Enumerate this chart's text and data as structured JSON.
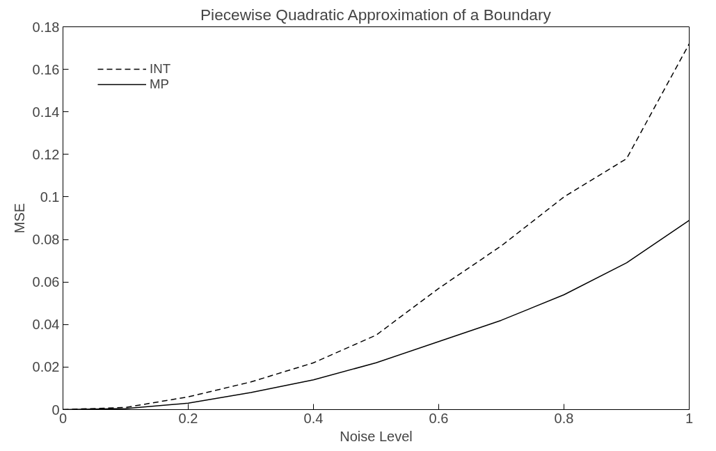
{
  "chart_data": {
    "type": "line",
    "title": "Piecewise Quadratic Approximation of a Boundary",
    "xlabel": "Noise Level",
    "ylabel": "MSE",
    "x": [
      0,
      0.1,
      0.2,
      0.3,
      0.4,
      0.5,
      0.6,
      0.7,
      0.8,
      0.9,
      1.0
    ],
    "series": [
      {
        "name": "INT",
        "color": "#000000",
        "line_style": "dashed",
        "values": [
          0,
          0.001,
          0.006,
          0.013,
          0.022,
          0.035,
          0.057,
          0.077,
          0.1,
          0.118,
          0.172
        ]
      },
      {
        "name": "MP",
        "color": "#000000",
        "line_style": "solid",
        "values": [
          0,
          0.0005,
          0.003,
          0.008,
          0.014,
          0.022,
          0.032,
          0.042,
          0.054,
          0.069,
          0.089
        ]
      }
    ],
    "xlim": [
      0,
      1
    ],
    "ylim": [
      0,
      0.18
    ],
    "xticks": [
      0,
      0.2,
      0.4,
      0.6,
      0.8,
      1
    ],
    "yticks": [
      0,
      0.02,
      0.04,
      0.06,
      0.08,
      0.1,
      0.12,
      0.14,
      0.16,
      0.18
    ],
    "grid": false,
    "legend": "top left",
    "marker": "none"
  }
}
